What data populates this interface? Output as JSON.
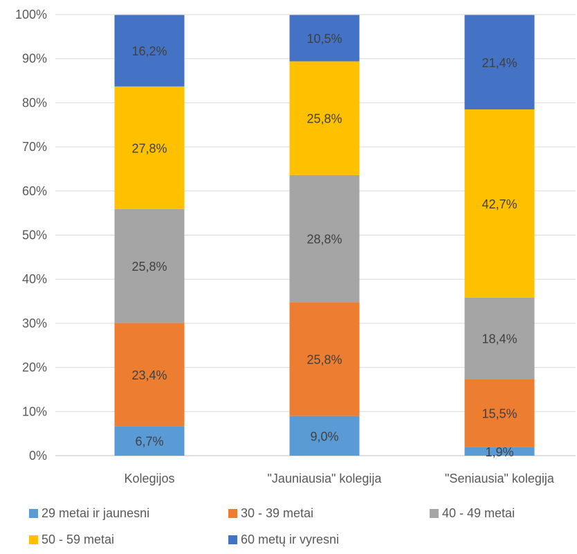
{
  "chart_data": {
    "type": "bar",
    "stacked": true,
    "normalized": true,
    "categories": [
      "Kolegijos",
      "\"Jauniausia\" kolegija",
      "\"Seniausia\" kolegija"
    ],
    "ylim": [
      0,
      100
    ],
    "yticks": [
      "0%",
      "10%",
      "20%",
      "30%",
      "40%",
      "50%",
      "60%",
      "70%",
      "80%",
      "90%",
      "100%"
    ],
    "grid": true,
    "legend_position": "bottom",
    "series": [
      {
        "name": "29 metai ir jaunesni",
        "color": "#5B9BD5",
        "values": [
          6.7,
          9.0,
          1.9
        ],
        "labels": [
          "6,7%",
          "9,0%",
          "1,9%"
        ]
      },
      {
        "name": "30 - 39 metai",
        "color": "#ED7D31",
        "values": [
          23.4,
          25.8,
          15.5
        ],
        "labels": [
          "23,4%",
          "25,8%",
          "15,5%"
        ]
      },
      {
        "name": "40 - 49 metai",
        "color": "#A5A5A5",
        "values": [
          25.8,
          28.8,
          18.4
        ],
        "labels": [
          "25,8%",
          "28,8%",
          "18,4%"
        ]
      },
      {
        "name": "50 - 59 metai",
        "color": "#FFC000",
        "values": [
          27.8,
          25.8,
          42.7
        ],
        "labels": [
          "27,8%",
          "25,8%",
          "42,7%"
        ]
      },
      {
        "name": "60 metų ir vyresni",
        "color": "#4472C4",
        "values": [
          16.2,
          10.5,
          21.4
        ],
        "labels": [
          "16,2%",
          "10,5%",
          "21,4%"
        ]
      }
    ]
  }
}
